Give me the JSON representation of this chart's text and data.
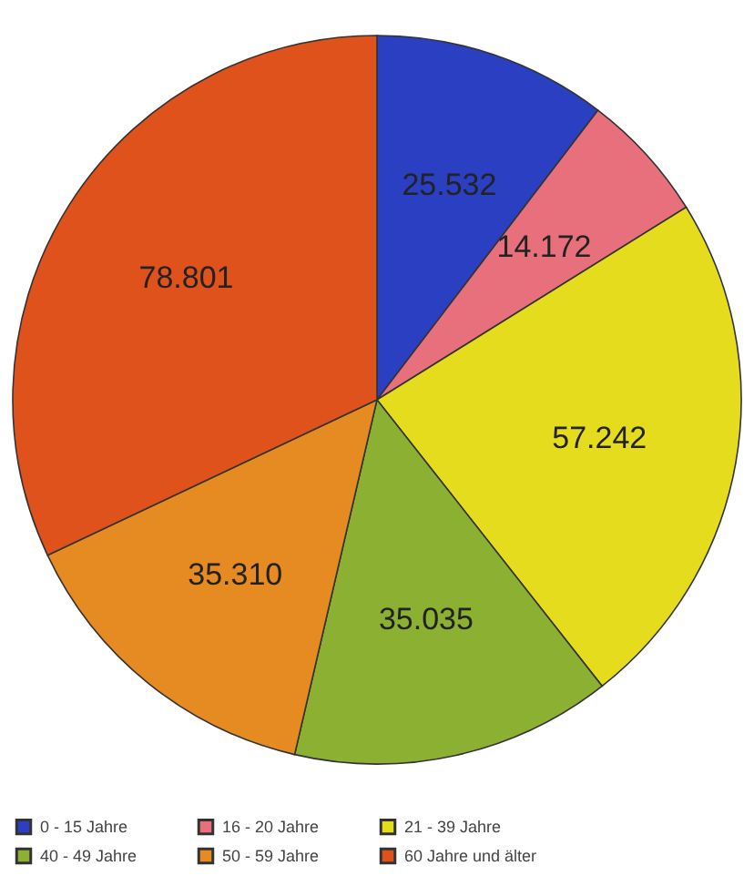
{
  "chart_data": {
    "type": "pie",
    "categories": [
      "0 - 15 Jahre",
      "16 - 20 Jahre",
      "21 - 39 Jahre",
      "40 - 49 Jahre",
      "50 - 59 Jahre",
      "60 Jahre und älter"
    ],
    "values": [
      25.532,
      14.172,
      57.242,
      35.035,
      35.31,
      78.801
    ],
    "value_labels": [
      "25.532",
      "14.172",
      "57.242",
      "35.035",
      "35.310",
      "78.801"
    ],
    "colors": [
      "#2b3fc2",
      "#e8707c",
      "#e6dc1e",
      "#8cb032",
      "#e68a22",
      "#e0521c"
    ],
    "legend": "bottom"
  }
}
